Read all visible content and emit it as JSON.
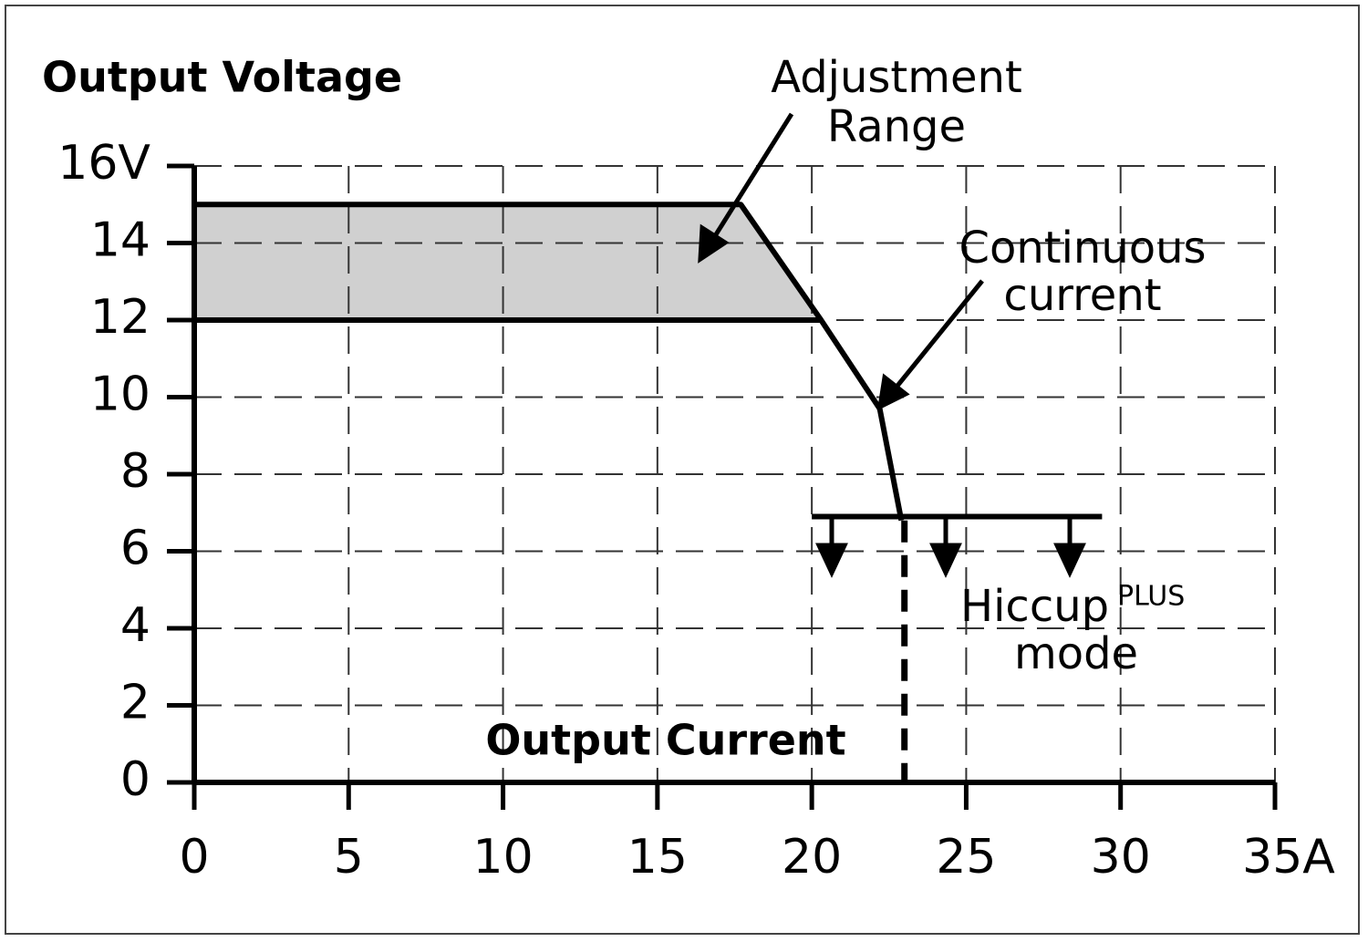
{
  "chart_data": {
    "type": "line",
    "y_label": "Output Voltage",
    "x_label": "Output Current",
    "xlim": [
      0,
      35
    ],
    "xticks": [
      0,
      5,
      10,
      15,
      20,
      25,
      30,
      {
        "value": 35,
        "label": "35A"
      }
    ],
    "ylim": [
      0,
      16
    ],
    "yticks": [
      0,
      2,
      4,
      6,
      8,
      10,
      12,
      14,
      {
        "value": 16,
        "label": "16V"
      }
    ],
    "grid": true,
    "band_color": "#d0d0d0",
    "series": [
      {
        "color": "#000000",
        "x": [
          0,
          17.7,
          20.3,
          22.2,
          22.9
        ],
        "values": [
          15,
          15,
          12,
          9.7,
          6.8
        ]
      },
      {
        "color": "#000000",
        "x": [
          0,
          20.3
        ],
        "values": [
          12,
          12
        ]
      },
      {
        "color": "#000000",
        "x": [
          20,
          29.4
        ],
        "values": [
          6.9,
          6.9
        ]
      },
      {
        "color": "#000000",
        "x": [
          23,
          23
        ],
        "values": [
          6.8,
          0
        ],
        "dashed": true
      }
    ],
    "annotations": [
      {
        "lines": [
          "Adjustment",
          "Range"
        ]
      },
      {
        "lines": [
          "Continuous",
          "current"
        ]
      },
      {
        "lines": [
          "Hiccup",
          "mode"
        ],
        "superscript": "PLUS"
      }
    ]
  }
}
